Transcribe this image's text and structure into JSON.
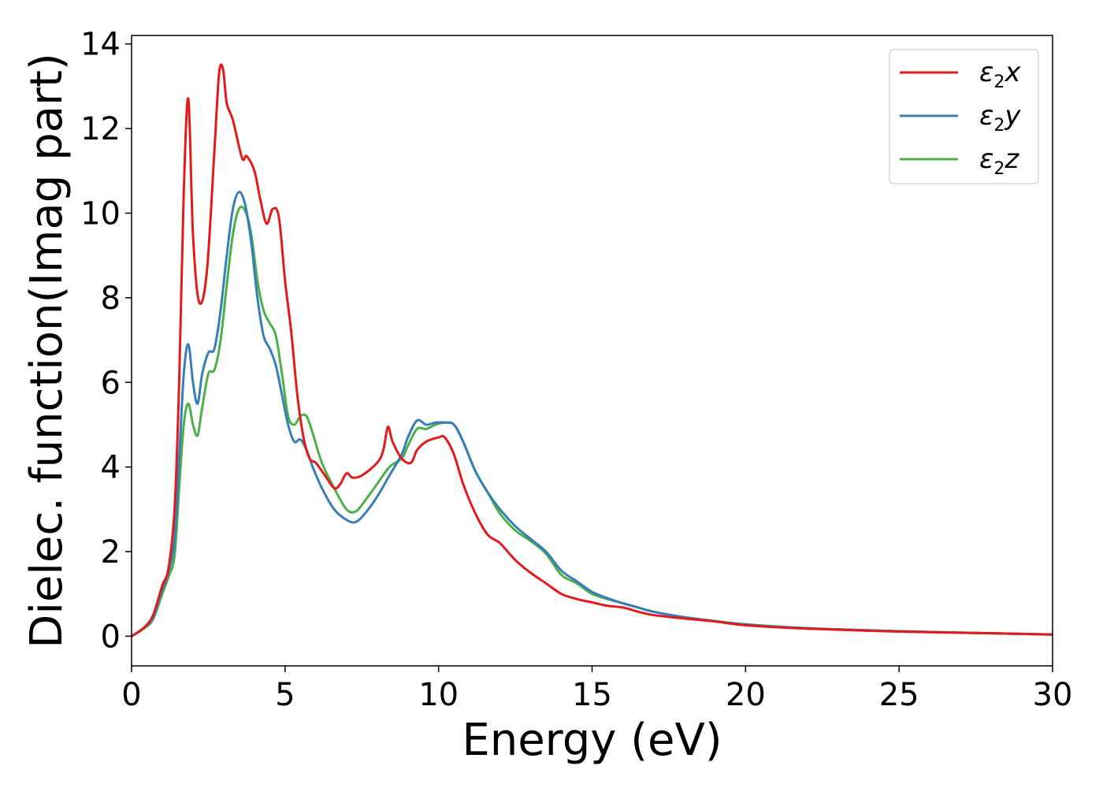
{
  "chart_data": {
    "type": "line",
    "xlabel": "Energy (eV)",
    "ylabel": "Dielec. function(Imag part)",
    "xlim": [
      0,
      30
    ],
    "ylim": [
      -0.7,
      14.2
    ],
    "xticks": [
      0,
      5,
      10,
      15,
      20,
      25,
      30
    ],
    "yticks": [
      0,
      2,
      4,
      6,
      8,
      10,
      12,
      14
    ],
    "grid": false,
    "legend_position": "top-right",
    "series": [
      {
        "name": "ε2x",
        "legend_symbol": "ε",
        "legend_sub": "2",
        "legend_var": "x",
        "color": "#e31a1c",
        "x": [
          0,
          0.4,
          0.7,
          1.0,
          1.2,
          1.4,
          1.55,
          1.7,
          1.85,
          2.0,
          2.2,
          2.45,
          2.7,
          2.85,
          2.98,
          3.1,
          3.3,
          3.6,
          3.75,
          4.0,
          4.2,
          4.4,
          4.6,
          4.8,
          5.0,
          5.2,
          5.4,
          5.6,
          5.8,
          6.0,
          6.3,
          6.6,
          6.8,
          7.0,
          7.2,
          7.5,
          8.0,
          8.2,
          8.35,
          8.5,
          8.8,
          9.1,
          9.3,
          9.6,
          10.0,
          10.2,
          10.5,
          10.8,
          11.2,
          11.6,
          12.0,
          12.5,
          13.0,
          13.5,
          14.0,
          14.5,
          15.0,
          15.5,
          16.0,
          16.5,
          17.0,
          18.0,
          19.0,
          20.0,
          22.0,
          25.0,
          28.0,
          30.0
        ],
        "y": [
          0,
          0.2,
          0.5,
          1.2,
          1.6,
          3.0,
          6.0,
          10.5,
          12.7,
          9.5,
          7.9,
          8.6,
          11.5,
          13.3,
          13.4,
          12.6,
          12.2,
          11.3,
          11.35,
          11.0,
          10.3,
          9.75,
          10.1,
          9.9,
          8.4,
          7.2,
          5.7,
          4.7,
          4.2,
          4.1,
          3.8,
          3.5,
          3.6,
          3.85,
          3.75,
          3.8,
          4.1,
          4.4,
          4.95,
          4.6,
          4.2,
          4.1,
          4.4,
          4.6,
          4.7,
          4.7,
          4.3,
          3.6,
          2.9,
          2.4,
          2.2,
          1.8,
          1.5,
          1.25,
          1.0,
          0.88,
          0.8,
          0.72,
          0.68,
          0.58,
          0.5,
          0.42,
          0.35,
          0.26,
          0.18,
          0.11,
          0.07,
          0.04
        ]
      },
      {
        "name": "ε2y",
        "legend_symbol": "ε",
        "legend_sub": "2",
        "legend_var": "y",
        "color": "#377eb8",
        "x": [
          0,
          0.4,
          0.7,
          1.0,
          1.2,
          1.4,
          1.55,
          1.7,
          1.85,
          2.0,
          2.15,
          2.3,
          2.5,
          2.7,
          2.9,
          3.1,
          3.3,
          3.5,
          3.7,
          3.9,
          4.1,
          4.3,
          4.5,
          4.7,
          4.9,
          5.1,
          5.3,
          5.5,
          5.7,
          5.9,
          6.2,
          6.6,
          7.0,
          7.3,
          7.6,
          8.0,
          8.4,
          8.8,
          9.0,
          9.3,
          9.6,
          9.9,
          10.2,
          10.5,
          10.8,
          11.2,
          11.6,
          12.0,
          12.5,
          13.0,
          13.5,
          14.0,
          14.5,
          15.0,
          15.5,
          16.0,
          16.5,
          17.0,
          18.0,
          19.0,
          20.0,
          22.0,
          25.0,
          28.0,
          30.0
        ],
        "y": [
          0,
          0.2,
          0.45,
          1.1,
          1.5,
          2.3,
          4.2,
          6.2,
          6.9,
          6.0,
          5.5,
          6.2,
          6.7,
          6.8,
          7.7,
          9.0,
          10.1,
          10.5,
          10.2,
          9.3,
          8.0,
          7.1,
          6.8,
          6.4,
          5.7,
          5.0,
          4.6,
          4.65,
          4.4,
          4.0,
          3.5,
          3.0,
          2.75,
          2.7,
          2.9,
          3.3,
          3.8,
          4.3,
          4.7,
          5.1,
          5.0,
          5.05,
          5.05,
          5.0,
          4.6,
          3.9,
          3.4,
          3.0,
          2.6,
          2.3,
          2.0,
          1.55,
          1.3,
          1.05,
          0.9,
          0.78,
          0.68,
          0.58,
          0.45,
          0.36,
          0.28,
          0.19,
          0.12,
          0.07,
          0.04
        ]
      },
      {
        "name": "ε2z",
        "legend_symbol": "ε",
        "legend_sub": "2",
        "legend_var": "z",
        "color": "#4daf4a",
        "x": [
          0,
          0.4,
          0.7,
          1.0,
          1.2,
          1.4,
          1.55,
          1.7,
          1.85,
          2.0,
          2.15,
          2.3,
          2.5,
          2.7,
          2.9,
          3.1,
          3.3,
          3.5,
          3.7,
          3.9,
          4.1,
          4.3,
          4.5,
          4.7,
          4.9,
          5.1,
          5.3,
          5.5,
          5.7,
          5.9,
          6.2,
          6.6,
          7.0,
          7.3,
          7.6,
          8.0,
          8.4,
          8.8,
          9.0,
          9.3,
          9.6,
          9.9,
          10.2,
          10.5,
          10.8,
          11.2,
          11.6,
          12.0,
          12.5,
          13.0,
          13.5,
          14.0,
          14.5,
          15.0,
          15.5,
          16.0,
          16.5,
          17.0,
          18.0,
          19.0,
          20.0,
          22.0,
          25.0,
          28.0,
          30.0
        ],
        "y": [
          0,
          0.18,
          0.4,
          1.0,
          1.4,
          1.9,
          3.5,
          5.0,
          5.5,
          5.0,
          4.75,
          5.4,
          6.2,
          6.3,
          7.0,
          8.3,
          9.5,
          10.1,
          10.05,
          9.5,
          8.4,
          7.7,
          7.4,
          7.1,
          6.2,
          5.2,
          5.0,
          5.2,
          5.2,
          4.8,
          4.1,
          3.5,
          3.0,
          2.95,
          3.2,
          3.6,
          4.0,
          4.2,
          4.5,
          4.9,
          4.9,
          5.0,
          5.05,
          5.0,
          4.6,
          3.9,
          3.4,
          2.9,
          2.5,
          2.25,
          1.95,
          1.45,
          1.25,
          1.0,
          0.88,
          0.78,
          0.68,
          0.58,
          0.45,
          0.36,
          0.28,
          0.19,
          0.12,
          0.07,
          0.04
        ]
      }
    ]
  }
}
